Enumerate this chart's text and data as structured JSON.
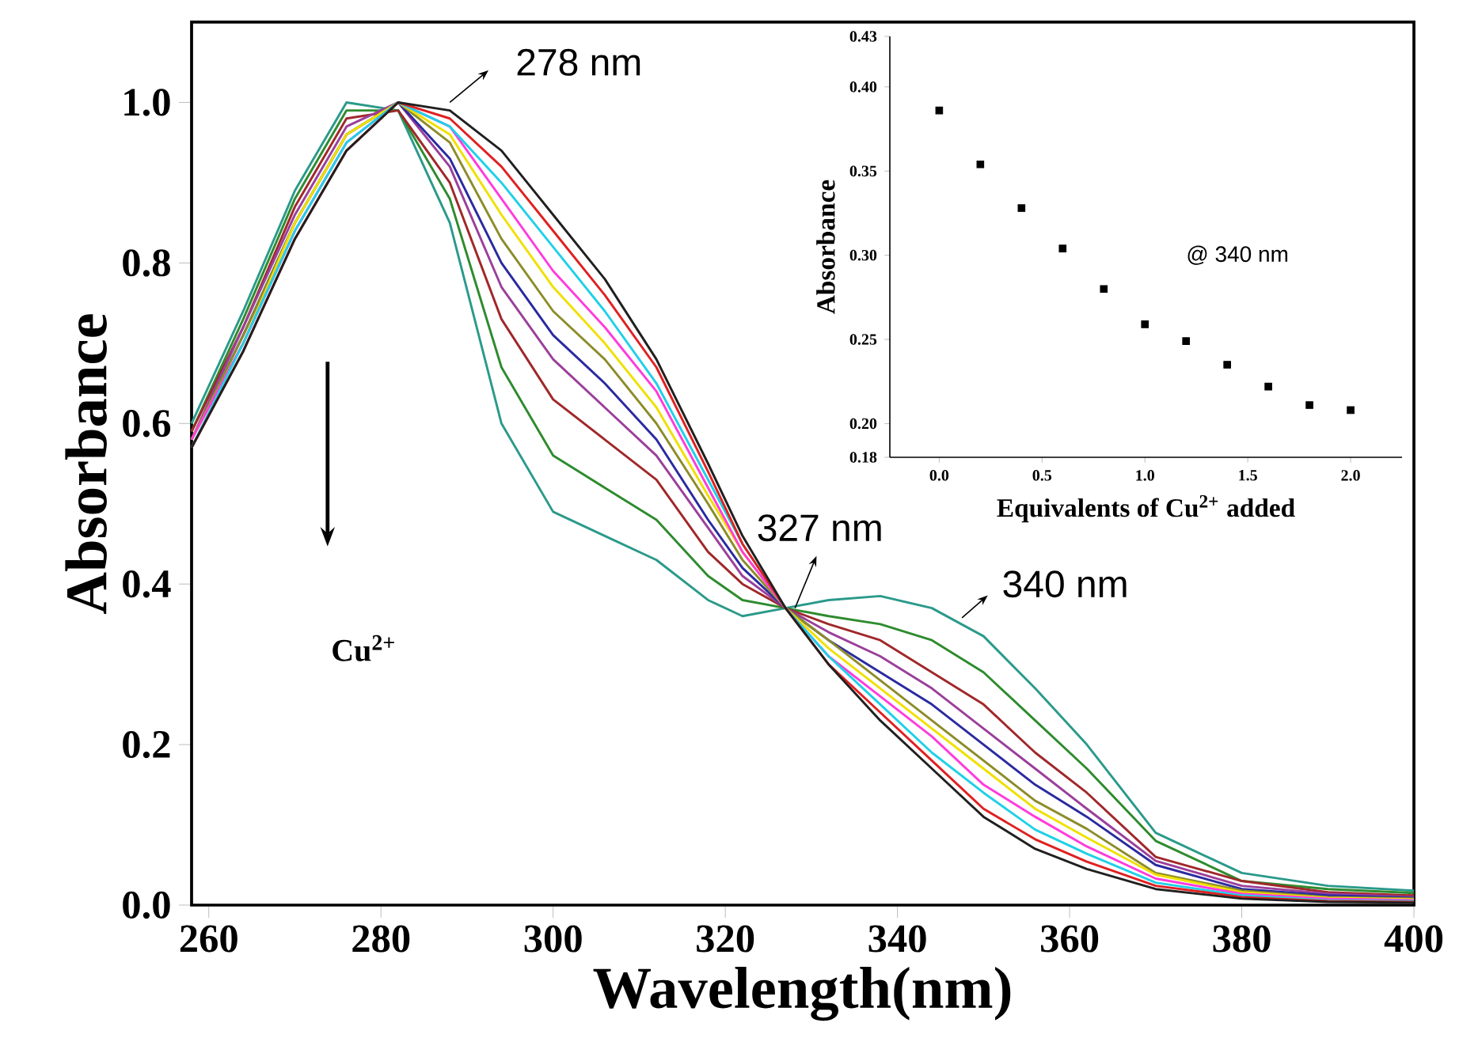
{
  "chart_data": [
    {
      "type": "line",
      "xlabel": "Wavelength(nm)",
      "ylabel": "Absorbance",
      "annotations": [
        "278 nm",
        "327 nm",
        "340 nm",
        "Cu$^{2+}$"
      ],
      "x": [
        258,
        264,
        270,
        276,
        282,
        288,
        294,
        300,
        306,
        312,
        318,
        322,
        327,
        332,
        338,
        344,
        350,
        356,
        362,
        370,
        380,
        390,
        400
      ],
      "xlim": [
        258,
        400
      ],
      "ylim": [
        0,
        1.1
      ],
      "xticks": [
        260,
        280,
        300,
        320,
        340,
        360,
        380,
        400
      ],
      "yticks": [
        {
          "value": 0,
          "label": "0.0"
        },
        {
          "value": 0.2,
          "label": "0.2"
        },
        {
          "value": 0.4,
          "label": "0.4"
        },
        {
          "value": 0.6,
          "label": "0.6"
        },
        {
          "value": 0.8,
          "label": "0.8"
        },
        {
          "value": 1.0,
          "label": "1.0"
        }
      ],
      "line_style": "solid",
      "marker": "none",
      "series": [
        {
          "color": "#2a9a8a",
          "values": [
            0.6,
            0.74,
            0.89,
            1.0,
            0.99,
            0.85,
            0.6,
            0.49,
            0.46,
            0.43,
            0.38,
            0.36,
            0.37,
            0.38,
            0.385,
            0.37,
            0.335,
            0.27,
            0.2,
            0.09,
            0.04,
            0.024,
            0.018
          ]
        },
        {
          "color": "#2e8b2e",
          "values": [
            0.59,
            0.73,
            0.88,
            0.99,
            0.99,
            0.88,
            0.67,
            0.56,
            0.52,
            0.48,
            0.41,
            0.38,
            0.37,
            0.36,
            0.35,
            0.33,
            0.29,
            0.23,
            0.17,
            0.08,
            0.03,
            0.02,
            0.015
          ]
        },
        {
          "color": "#a0282a",
          "values": [
            0.59,
            0.72,
            0.87,
            0.98,
            0.99,
            0.9,
            0.73,
            0.63,
            0.58,
            0.53,
            0.44,
            0.4,
            0.37,
            0.35,
            0.33,
            0.29,
            0.25,
            0.19,
            0.14,
            0.06,
            0.03,
            0.016,
            0.012
          ]
        },
        {
          "color": "#9b3f9b",
          "values": [
            0.58,
            0.72,
            0.86,
            0.97,
            1.0,
            0.92,
            0.77,
            0.68,
            0.62,
            0.56,
            0.47,
            0.41,
            0.37,
            0.34,
            0.31,
            0.27,
            0.22,
            0.17,
            0.12,
            0.055,
            0.024,
            0.014,
            0.01
          ]
        },
        {
          "color": "#2a2aa0",
          "values": [
            0.58,
            0.71,
            0.85,
            0.96,
            1.0,
            0.93,
            0.8,
            0.71,
            0.65,
            0.58,
            0.48,
            0.42,
            0.37,
            0.33,
            0.29,
            0.25,
            0.2,
            0.15,
            0.11,
            0.05,
            0.02,
            0.012,
            0.009
          ]
        },
        {
          "color": "#8c8c2a",
          "values": [
            0.58,
            0.71,
            0.85,
            0.96,
            1.0,
            0.95,
            0.83,
            0.74,
            0.68,
            0.6,
            0.5,
            0.43,
            0.37,
            0.33,
            0.28,
            0.23,
            0.18,
            0.13,
            0.095,
            0.04,
            0.018,
            0.01,
            0.008
          ]
        },
        {
          "color": "#f0e000",
          "values": [
            0.58,
            0.7,
            0.85,
            0.96,
            1.0,
            0.96,
            0.86,
            0.77,
            0.7,
            0.62,
            0.51,
            0.44,
            0.37,
            0.32,
            0.27,
            0.22,
            0.17,
            0.12,
            0.084,
            0.038,
            0.016,
            0.009,
            0.007
          ]
        },
        {
          "color": "#ff3cdc",
          "values": [
            0.58,
            0.7,
            0.84,
            0.95,
            1.0,
            0.97,
            0.88,
            0.79,
            0.72,
            0.64,
            0.52,
            0.44,
            0.37,
            0.31,
            0.26,
            0.21,
            0.15,
            0.11,
            0.073,
            0.033,
            0.014,
            0.008,
            0.006
          ]
        },
        {
          "color": "#20d0e8",
          "values": [
            0.57,
            0.7,
            0.84,
            0.95,
            1.0,
            0.97,
            0.9,
            0.82,
            0.74,
            0.65,
            0.53,
            0.45,
            0.37,
            0.31,
            0.25,
            0.19,
            0.14,
            0.094,
            0.064,
            0.028,
            0.012,
            0.006,
            0.005
          ]
        },
        {
          "color": "#e02020",
          "values": [
            0.57,
            0.69,
            0.83,
            0.94,
            1.0,
            0.98,
            0.92,
            0.84,
            0.76,
            0.67,
            0.54,
            0.45,
            0.37,
            0.3,
            0.24,
            0.18,
            0.12,
            0.082,
            0.054,
            0.024,
            0.01,
            0.005,
            0.004
          ]
        },
        {
          "color": "#202020",
          "values": [
            0.57,
            0.69,
            0.83,
            0.94,
            1.0,
            0.99,
            0.94,
            0.86,
            0.78,
            0.68,
            0.55,
            0.46,
            0.37,
            0.3,
            0.23,
            0.17,
            0.11,
            0.07,
            0.045,
            0.02,
            0.008,
            0.004,
            0.003
          ]
        }
      ]
    },
    {
      "type": "scatter",
      "xlabel": "Equivalents of Cu$^{2+}$ added",
      "ylabel": "Absorbance",
      "annotations": [
        "@ 340 nm"
      ],
      "x": [
        0,
        0.2,
        0.4,
        0.6,
        0.8,
        1.0,
        1.2,
        1.4,
        1.6,
        1.8,
        2.0
      ],
      "values": [
        0.386,
        0.354,
        0.328,
        0.304,
        0.28,
        0.259,
        0.249,
        0.235,
        0.222,
        0.211,
        0.208
      ],
      "color": "#000000",
      "marker": "square",
      "xlim": [
        -0.24,
        2.25
      ],
      "ylim": [
        0.18,
        0.43
      ],
      "xticks": [
        {
          "value": 0,
          "label": "0.0"
        },
        {
          "value": 0.5,
          "label": "0.5"
        },
        {
          "value": 1.0,
          "label": "1.0"
        },
        {
          "value": 1.5,
          "label": "1.5"
        },
        {
          "value": 2.0,
          "label": "2.0"
        }
      ],
      "yticks": [
        0.18,
        {
          "value": 0.2,
          "label": "0.20"
        },
        0.25,
        {
          "value": 0.3,
          "label": "0.30"
        },
        0.35,
        {
          "value": 0.4,
          "label": "0.40"
        },
        0.43
      ]
    }
  ]
}
